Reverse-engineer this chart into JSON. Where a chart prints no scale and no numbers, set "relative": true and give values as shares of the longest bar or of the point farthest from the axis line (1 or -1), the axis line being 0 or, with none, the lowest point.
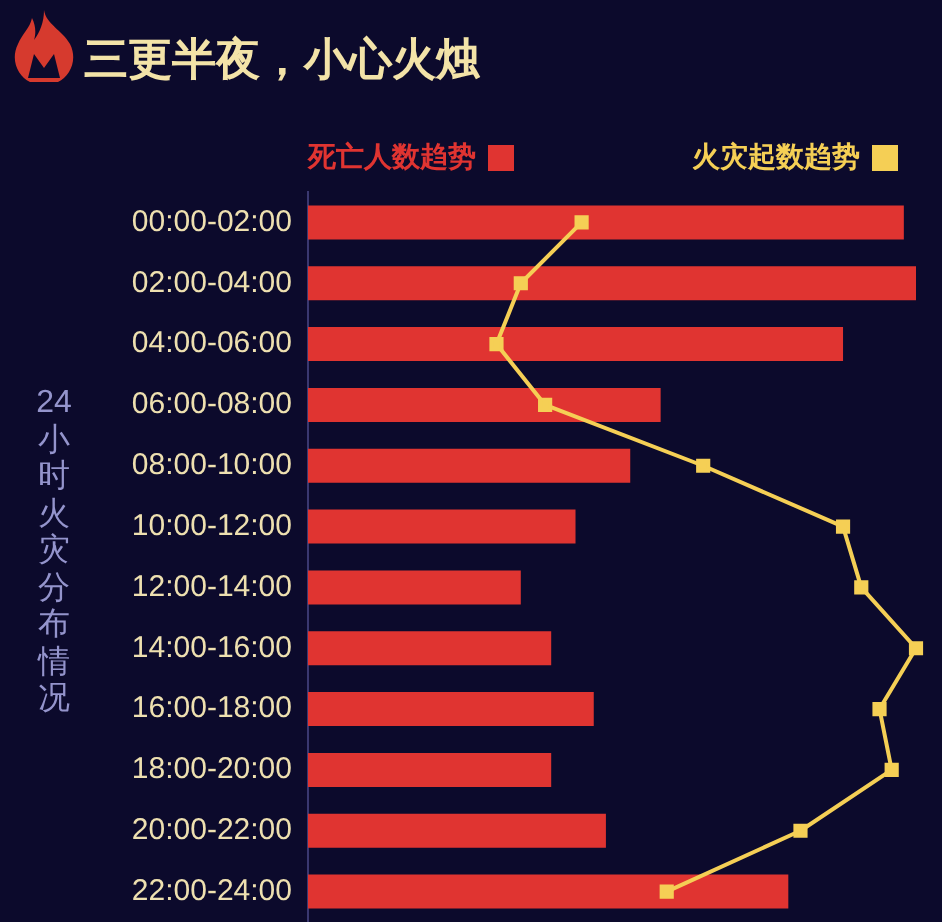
{
  "chart_data": {
    "type": "bar",
    "orientation": "horizontal",
    "relative": true,
    "title": "三更半夜，小心火烛",
    "ylabel": "24小时火灾分布情况",
    "categories": [
      "00:00-02:00",
      "02:00-04:00",
      "04:00-06:00",
      "06:00-08:00",
      "08:00-10:00",
      "10:00-12:00",
      "12:00-14:00",
      "14:00-16:00",
      "16:00-18:00",
      "18:00-20:00",
      "20:00-22:00",
      "22:00-24:00"
    ],
    "series": [
      {
        "name": "死亡人数趋势",
        "color": "#e03431",
        "values": [
          0.98,
          1,
          0.88,
          0.58,
          0.53,
          0.44,
          0.35,
          0.4,
          0.47,
          0.4,
          0.49,
          0.79
        ]
      },
      {
        "name": "火灾起数趋势",
        "type": "line",
        "color": "#f5cf55",
        "values": [
          0.45,
          0.35,
          0.31,
          0.39,
          0.65,
          0.88,
          0.91,
          1,
          0.94,
          0.96,
          0.81,
          0.59
        ]
      }
    ],
    "marker": "square",
    "legend": "top"
  }
}
